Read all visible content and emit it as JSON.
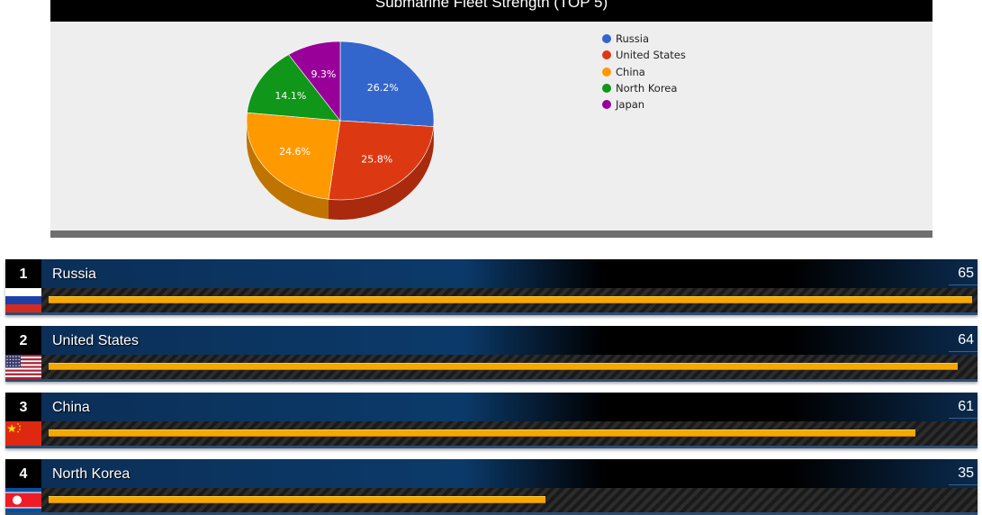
{
  "chart_title": "Submarine Fleet Strength (TOP 5)",
  "chart_data": {
    "type": "pie",
    "title": "Submarine Fleet Strength (TOP 5)",
    "legend_position": "top-right",
    "slices": [
      {
        "name": "Russia",
        "percent": 26.2,
        "label": "26.2%",
        "color": "#3366cc",
        "side_color": "#2a52a3"
      },
      {
        "name": "United States",
        "percent": 25.8,
        "label": "25.8%",
        "color": "#dc3912",
        "side_color": "#a92a0d"
      },
      {
        "name": "China",
        "percent": 24.6,
        "label": "24.6%",
        "color": "#ff9900",
        "side_color": "#c07400"
      },
      {
        "name": "North Korea",
        "percent": 14.1,
        "label": "14.1%",
        "color": "#109618",
        "side_color": "#0b7011"
      },
      {
        "name": "Japan",
        "percent": 9.3,
        "label": "9.3%",
        "color": "#990099",
        "side_color": "#700070"
      }
    ]
  },
  "rankings": [
    {
      "rank": "1",
      "country": "Russia",
      "value": 65,
      "flag": "russia-flag"
    },
    {
      "rank": "2",
      "country": "United States",
      "value": 64,
      "flag": "usa-flag"
    },
    {
      "rank": "3",
      "country": "China",
      "value": 61,
      "flag": "china-flag"
    },
    {
      "rank": "4",
      "country": "North Korea",
      "value": 35,
      "flag": "north-korea-flag"
    }
  ],
  "ranking_max": 65
}
